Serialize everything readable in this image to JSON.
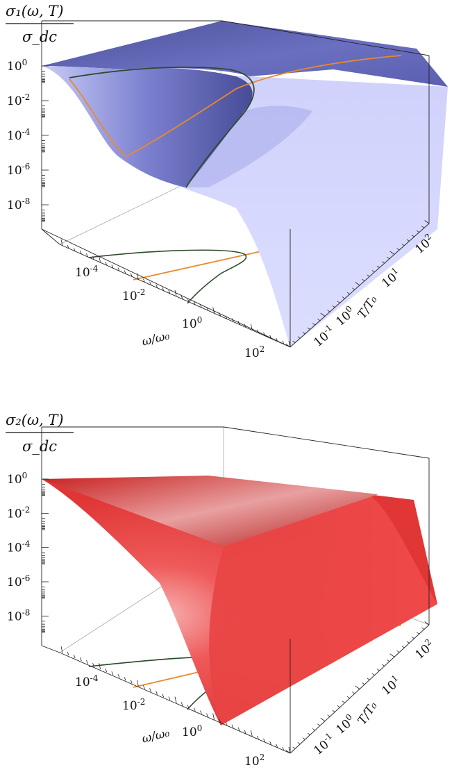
{
  "chart_data": [
    {
      "type": "surface",
      "title": "",
      "zlabel": {
        "numerator": "σ₁(ω, T)",
        "denominator": "σ_dc"
      },
      "xlabel": "ω/ω₀",
      "ylabel": "T/T₀",
      "scale": "log",
      "z_ticks": [
        {
          "base": "10",
          "exp": "0"
        },
        {
          "base": "10",
          "exp": "-2"
        },
        {
          "base": "10",
          "exp": "-4"
        },
        {
          "base": "10",
          "exp": "-6"
        },
        {
          "base": "10",
          "exp": "-8"
        }
      ],
      "x_ticks": [
        {
          "base": "10",
          "exp": "-4"
        },
        {
          "base": "10",
          "exp": "-2"
        },
        {
          "base": "10",
          "exp": "0"
        },
        {
          "base": "10",
          "exp": "2"
        }
      ],
      "y_ticks": [
        {
          "base": "10",
          "exp": "-1"
        },
        {
          "base": "10",
          "exp": "0"
        },
        {
          "base": "10",
          "exp": "1"
        },
        {
          "base": "10",
          "exp": "2"
        }
      ],
      "surface_color": "#5a5fb0",
      "surface_light": "#d6d8ff",
      "curves": [
        {
          "name": "",
          "color": "#e88a2a"
        },
        {
          "name": "",
          "color": "#2f4a2f"
        }
      ]
    },
    {
      "type": "surface",
      "title": "",
      "zlabel": {
        "numerator": "σ₂(ω, T)",
        "denominator": "σ_dc"
      },
      "xlabel": "ω/ω₀",
      "ylabel": "T/T₀",
      "scale": "log",
      "z_ticks": [
        {
          "base": "10",
          "exp": "0"
        },
        {
          "base": "10",
          "exp": "-2"
        },
        {
          "base": "10",
          "exp": "-4"
        },
        {
          "base": "10",
          "exp": "-6"
        },
        {
          "base": "10",
          "exp": "-8"
        }
      ],
      "x_ticks": [
        {
          "base": "10",
          "exp": "-4"
        },
        {
          "base": "10",
          "exp": "-2"
        },
        {
          "base": "10",
          "exp": "0"
        },
        {
          "base": "10",
          "exp": "2"
        }
      ],
      "y_ticks": [
        {
          "base": "10",
          "exp": "-1"
        },
        {
          "base": "10",
          "exp": "0"
        },
        {
          "base": "10",
          "exp": "1"
        },
        {
          "base": "10",
          "exp": "2"
        }
      ],
      "surface_color": "#e43a3a",
      "surface_light": "#f26a6a",
      "curves": [
        {
          "name": "",
          "color": "#e88a2a"
        },
        {
          "name": "",
          "color": "#2f4a2f"
        }
      ]
    }
  ]
}
